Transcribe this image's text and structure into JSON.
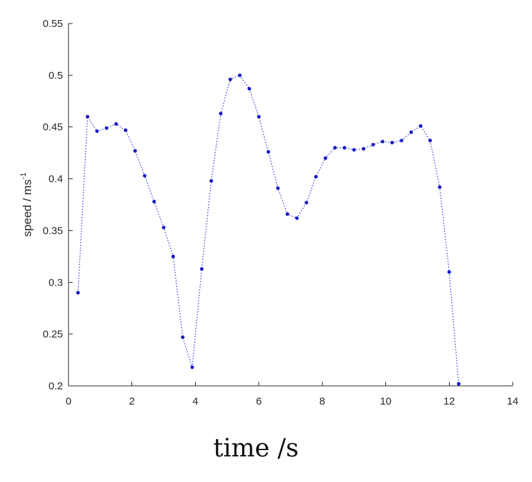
{
  "chart_data": {
    "type": "line",
    "title": "",
    "xlabel": "time /s",
    "ylabel": "speed / ms",
    "ylabel_superscript": "-1",
    "xlim": [
      0,
      14
    ],
    "ylim": [
      0.2,
      0.55
    ],
    "xticks": [
      0,
      2,
      4,
      6,
      8,
      10,
      12,
      14
    ],
    "xtick_labels": [
      "0",
      "2",
      "4",
      "6",
      "8",
      "10",
      "12",
      "14"
    ],
    "yticks": [
      0.2,
      0.25,
      0.3,
      0.35,
      0.4,
      0.45,
      0.5,
      0.55
    ],
    "ytick_labels": [
      "0.2",
      "0.25",
      "0.3",
      "0.35",
      "0.4",
      "0.45",
      "0.5",
      "0.55"
    ],
    "grid": false,
    "line_style": "dotted",
    "marker": "point",
    "color": "#2b2bd6",
    "series": [
      {
        "x": [
          0.3,
          0.6,
          0.9,
          1.2,
          1.5,
          1.8,
          2.1,
          2.4,
          2.7,
          3.0,
          3.3,
          3.6,
          3.9,
          4.2,
          4.5,
          4.8,
          5.1,
          5.4,
          5.7,
          6.0,
          6.3,
          6.6,
          6.9,
          7.2,
          7.5,
          7.8,
          8.1,
          8.4,
          8.7,
          9.0,
          9.3,
          9.6,
          9.9,
          10.2,
          10.5,
          10.8,
          11.1,
          11.4,
          11.7,
          12.0,
          12.3
        ],
        "y": [
          0.29,
          0.46,
          0.446,
          0.449,
          0.453,
          0.447,
          0.427,
          0.403,
          0.378,
          0.353,
          0.325,
          0.247,
          0.218,
          0.313,
          0.398,
          0.463,
          0.496,
          0.5,
          0.487,
          0.46,
          0.426,
          0.391,
          0.366,
          0.362,
          0.377,
          0.402,
          0.42,
          0.43,
          0.43,
          0.428,
          0.429,
          0.433,
          0.436,
          0.435,
          0.437,
          0.445,
          0.451,
          0.437,
          0.392,
          0.31,
          0.202
        ]
      }
    ]
  }
}
